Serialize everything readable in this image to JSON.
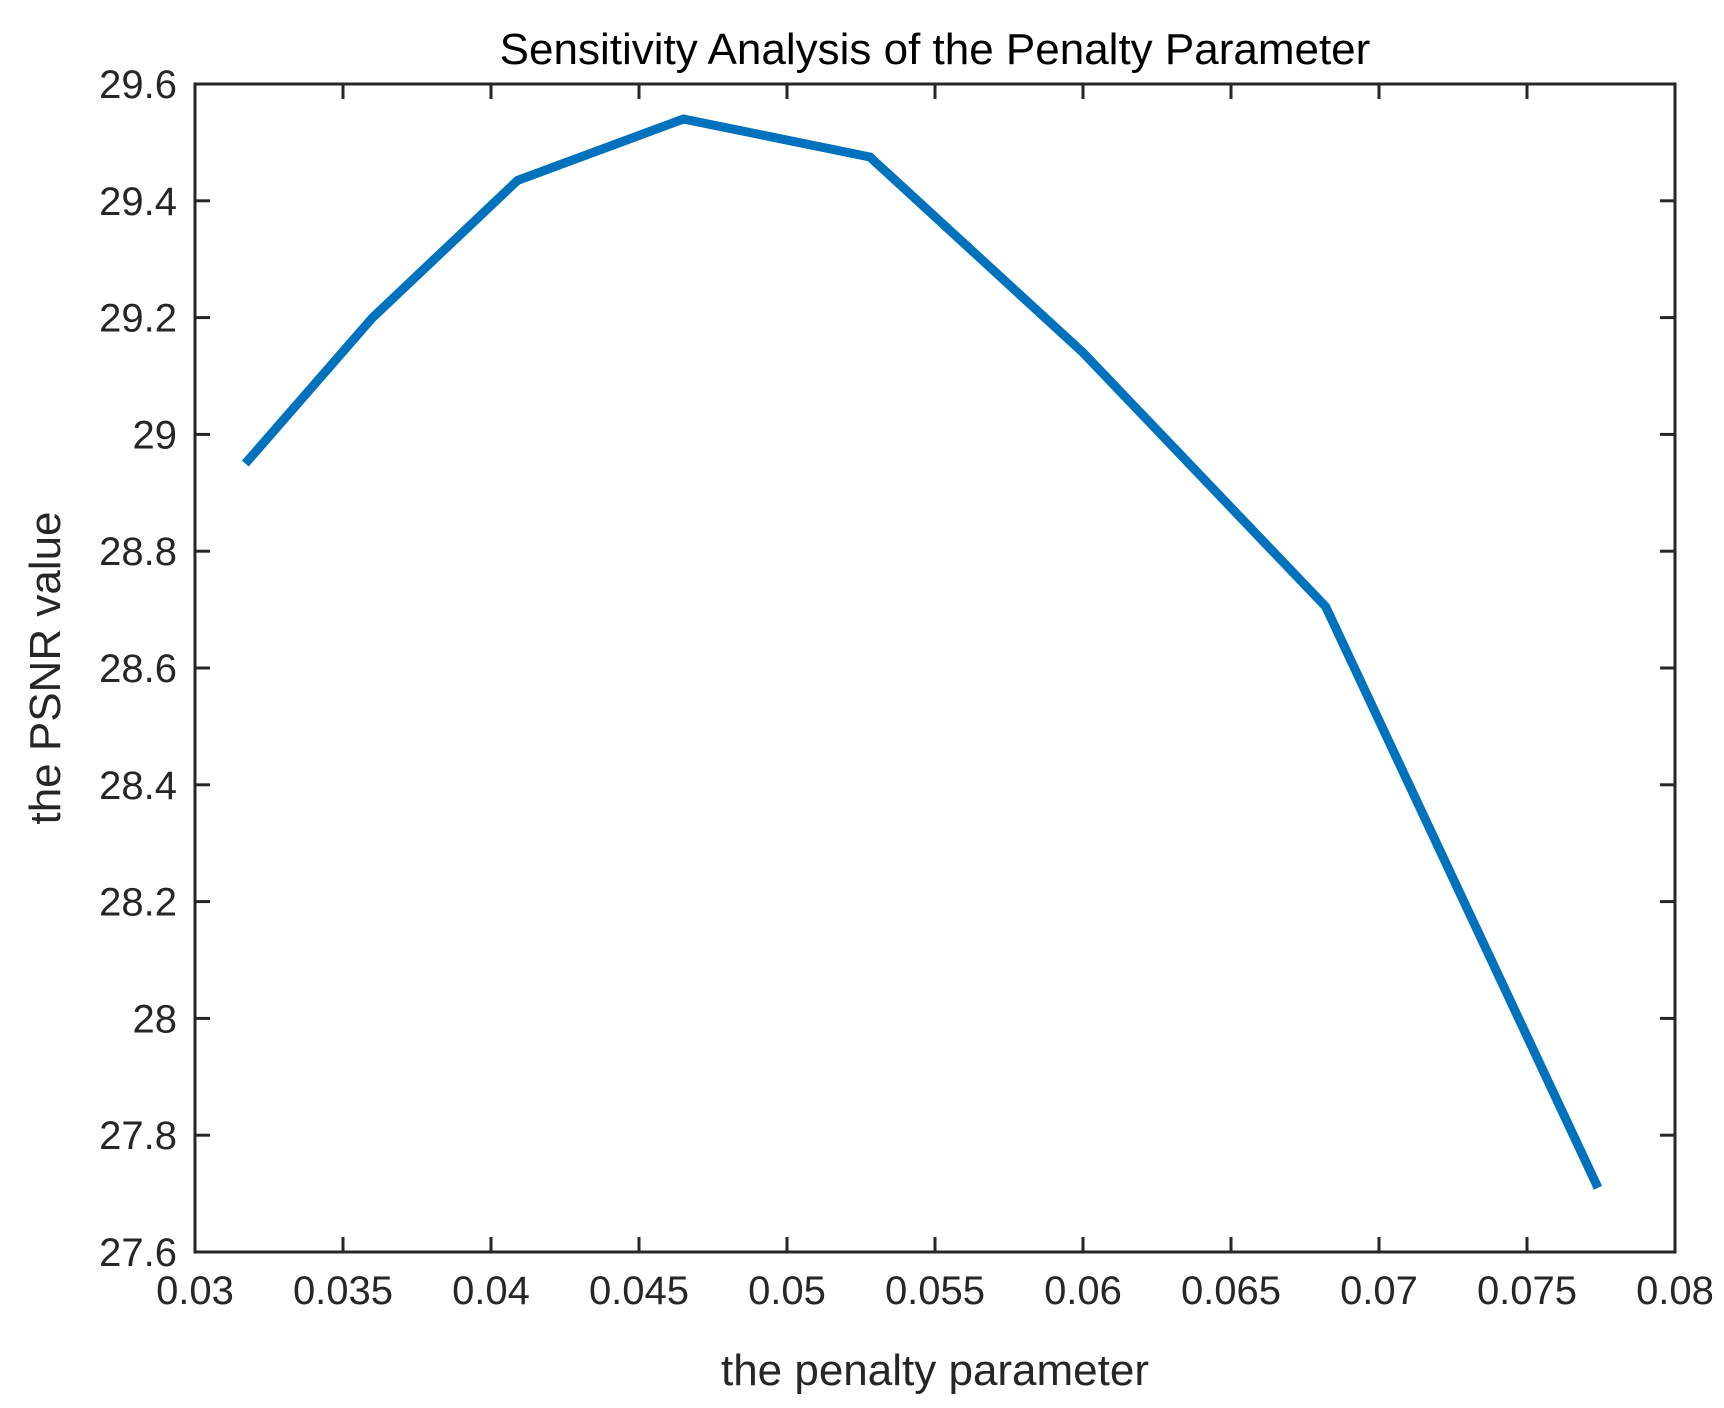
{
  "chart_data": {
    "type": "line",
    "title": "Sensitivity Analysis of the Penalty Parameter",
    "xlabel": "the penalty parameter",
    "ylabel": "the PSNR value",
    "xlim": [
      0.03,
      0.08
    ],
    "ylim": [
      27.6,
      29.6
    ],
    "xticks": [
      "0.03",
      "0.035",
      "0.04",
      "0.045",
      "0.05",
      "0.055",
      "0.06",
      "0.065",
      "0.07",
      "0.075",
      "0.08"
    ],
    "yticks": [
      "27.6",
      "27.8",
      "28",
      "28.2",
      "28.4",
      "28.6",
      "28.8",
      "29",
      "29.2",
      "29.4",
      "29.6"
    ],
    "grid": false,
    "series": [
      {
        "color": "#0072BD",
        "x": [
          0.0317,
          0.036,
          0.0409,
          0.0465,
          0.0528,
          0.06,
          0.0682,
          0.0774
        ],
        "y": [
          28.95,
          29.2,
          29.435,
          29.54,
          29.475,
          29.14,
          28.705,
          27.71
        ]
      }
    ]
  }
}
